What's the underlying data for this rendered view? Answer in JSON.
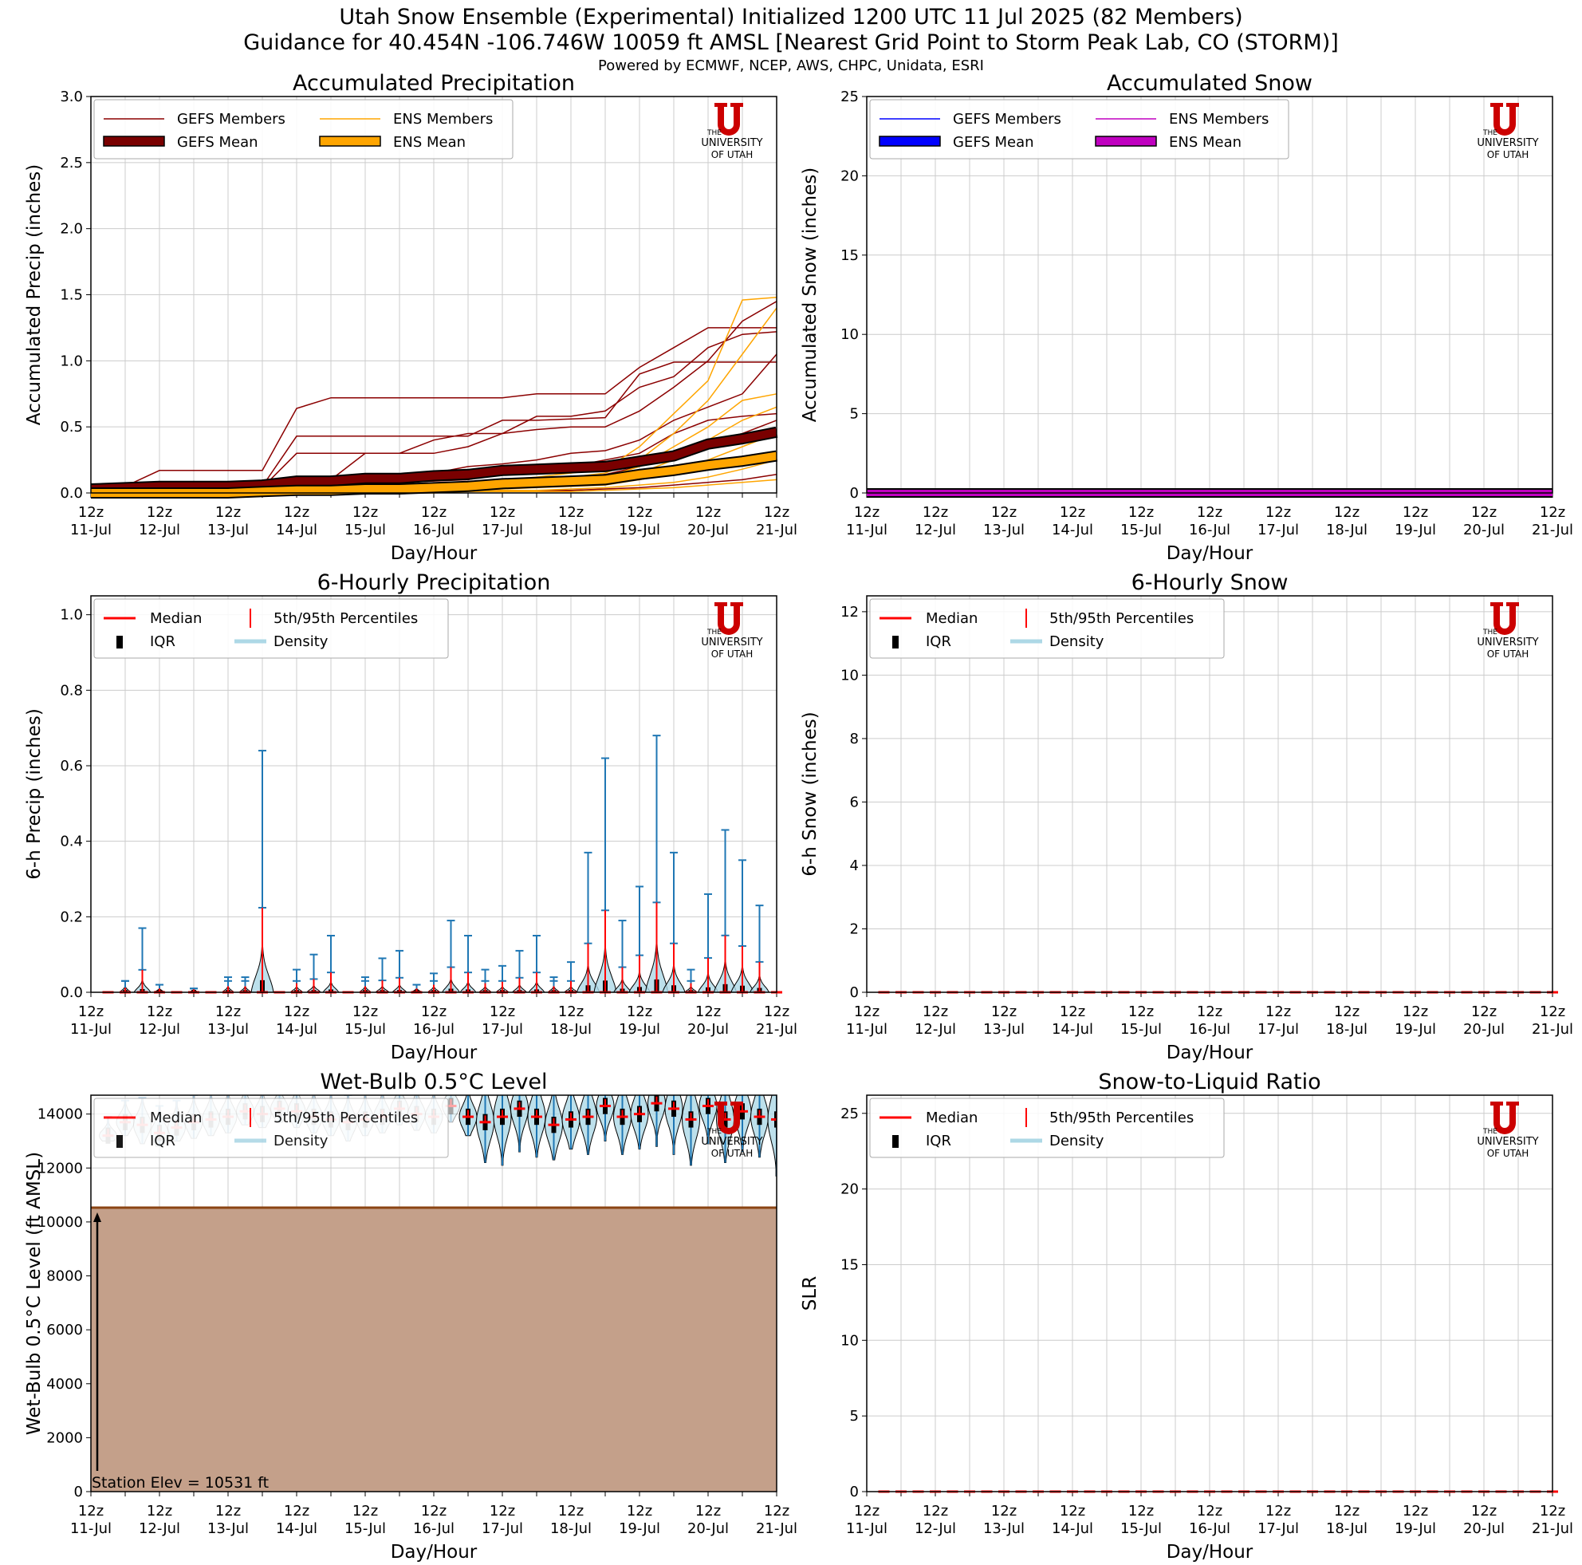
{
  "header": {
    "title_line1": "Utah Snow Ensemble (Experimental) Initialized 1200 UTC 11 Jul 2025 (82 Members)",
    "title_line2": "Guidance for 40.454N -106.746W 10059 ft AMSL [Nearest Grid Point to Storm Peak Lab, CO (STORM)]",
    "powered_by": "Powered by ECMWF, NCEP, AWS, CHPC, Unidata, ESRI"
  },
  "logo": {
    "line1": "THE",
    "line2": "UNIVERSITY",
    "line3": "OF UTAH",
    "color": "#cc0000"
  },
  "colors": {
    "gefs_member": "#8b0000",
    "gefs_mean": "#7a0000",
    "ens_member": "#ffa500",
    "ens_mean": "#ffa500",
    "snow_gefs": "#0000ff",
    "snow_ens": "#c000c0",
    "median": "#ff0000",
    "iqr": "#000000",
    "density": "#add8e6",
    "whisker": "#1f77b4",
    "terrain": "#c4a08a",
    "terrain_edge": "#8b4513",
    "grid": "#cccccc"
  },
  "x_axis": {
    "hour_labels": [
      "12z",
      "12z",
      "12z",
      "12z",
      "12z",
      "12z",
      "12z",
      "12z",
      "12z",
      "12z",
      "12z"
    ],
    "day_labels": [
      "11-Jul",
      "12-Jul",
      "13-Jul",
      "14-Jul",
      "15-Jul",
      "16-Jul",
      "17-Jul",
      "18-Jul",
      "19-Jul",
      "20-Jul",
      "21-Jul"
    ],
    "xlabel": "Day/Hour"
  },
  "chart_data": [
    {
      "id": "accum_precip",
      "type": "line",
      "title": "Accumulated Precipitation",
      "ylabel": "Accumulated Precip (inches)",
      "xlabel": "Day/Hour",
      "ylim": [
        0,
        3.0
      ],
      "yticks": [
        "0.0",
        "0.5",
        "1.0",
        "1.5",
        "2.0",
        "2.5",
        "3.0"
      ],
      "yticks_values": [
        0,
        0.5,
        1.0,
        1.5,
        2.0,
        2.5,
        3.0
      ],
      "x_days": [
        0,
        0.5,
        1,
        1.5,
        2,
        2.5,
        3,
        3.5,
        4,
        4.5,
        5,
        5.5,
        6,
        6.5,
        7,
        7.5,
        8,
        8.5,
        9,
        9.5,
        10
      ],
      "legend": [
        "GEFS Members",
        "ENS Members",
        "GEFS Mean",
        "ENS Mean"
      ],
      "series": [
        {
          "name": "GEFS Mean",
          "values": [
            0.03,
            0.04,
            0.05,
            0.05,
            0.05,
            0.06,
            0.09,
            0.09,
            0.11,
            0.11,
            0.13,
            0.14,
            0.17,
            0.18,
            0.19,
            0.2,
            0.24,
            0.28,
            0.37,
            0.41,
            0.46
          ]
        },
        {
          "name": "ENS Mean",
          "values": [
            0.0,
            0.0,
            0.0,
            0.0,
            0.0,
            0.01,
            0.02,
            0.02,
            0.03,
            0.03,
            0.04,
            0.05,
            0.07,
            0.08,
            0.09,
            0.1,
            0.14,
            0.17,
            0.21,
            0.24,
            0.28
          ]
        },
        {
          "name": "GEFS Member A",
          "values": [
            0.03,
            0.05,
            0.17,
            0.17,
            0.17,
            0.17,
            0.64,
            0.72,
            0.72,
            0.72,
            0.72,
            0.72,
            0.72,
            0.75,
            0.75,
            0.75,
            0.95,
            1.1,
            1.25,
            1.25,
            1.25
          ]
        },
        {
          "name": "GEFS Member B",
          "values": [
            0.03,
            0.03,
            0.03,
            0.03,
            0.03,
            0.05,
            0.43,
            0.43,
            0.43,
            0.43,
            0.43,
            0.43,
            0.55,
            0.55,
            0.56,
            0.57,
            0.9,
            0.99,
            0.99,
            0.99,
            0.99
          ]
        },
        {
          "name": "GEFS Member C",
          "values": [
            0.02,
            0.03,
            0.03,
            0.04,
            0.04,
            0.04,
            0.3,
            0.3,
            0.3,
            0.3,
            0.3,
            0.35,
            0.45,
            0.58,
            0.58,
            0.62,
            0.8,
            0.88,
            1.1,
            1.2,
            1.22
          ]
        },
        {
          "name": "GEFS Member D",
          "values": [
            0.02,
            0.02,
            0.02,
            0.02,
            0.02,
            0.03,
            0.07,
            0.1,
            0.3,
            0.3,
            0.4,
            0.45,
            0.45,
            0.48,
            0.5,
            0.5,
            0.62,
            0.8,
            1.0,
            1.3,
            1.45
          ]
        },
        {
          "name": "GEFS Member E",
          "values": [
            0.02,
            0.02,
            0.02,
            0.02,
            0.02,
            0.02,
            0.05,
            0.05,
            0.1,
            0.12,
            0.15,
            0.2,
            0.22,
            0.25,
            0.3,
            0.32,
            0.4,
            0.55,
            0.65,
            0.75,
            1.05
          ]
        },
        {
          "name": "GEFS Member F",
          "values": [
            0.01,
            0.01,
            0.01,
            0.01,
            0.01,
            0.02,
            0.04,
            0.05,
            0.07,
            0.08,
            0.09,
            0.1,
            0.15,
            0.16,
            0.2,
            0.25,
            0.3,
            0.45,
            0.55,
            0.58,
            0.6
          ]
        },
        {
          "name": "GEFS Member G",
          "values": [
            0.01,
            0.01,
            0.01,
            0.01,
            0.01,
            0.01,
            0.02,
            0.02,
            0.03,
            0.04,
            0.05,
            0.06,
            0.08,
            0.1,
            0.12,
            0.14,
            0.2,
            0.3,
            0.38,
            0.45,
            0.55
          ]
        },
        {
          "name": "GEFS Member H",
          "values": [
            0.0,
            0.0,
            0.0,
            0.0,
            0.0,
            0.0,
            0.01,
            0.01,
            0.01,
            0.02,
            0.03,
            0.03,
            0.05,
            0.05,
            0.06,
            0.08,
            0.1,
            0.15,
            0.2,
            0.25,
            0.3
          ]
        },
        {
          "name": "GEFS Member I",
          "values": [
            0.0,
            0.0,
            0.0,
            0.0,
            0.0,
            0.0,
            0.0,
            0.0,
            0.0,
            0.0,
            0.01,
            0.01,
            0.02,
            0.02,
            0.02,
            0.03,
            0.04,
            0.06,
            0.08,
            0.1,
            0.14
          ]
        },
        {
          "name": "ENS Member A",
          "values": [
            0.0,
            0.0,
            0.0,
            0.0,
            0.0,
            0.01,
            0.02,
            0.03,
            0.03,
            0.04,
            0.05,
            0.06,
            0.1,
            0.12,
            0.15,
            0.18,
            0.35,
            0.6,
            0.85,
            1.46,
            1.48
          ]
        },
        {
          "name": "ENS Member B",
          "values": [
            0.0,
            0.0,
            0.0,
            0.0,
            0.0,
            0.01,
            0.02,
            0.02,
            0.03,
            0.04,
            0.05,
            0.06,
            0.08,
            0.1,
            0.12,
            0.15,
            0.25,
            0.45,
            0.7,
            1.05,
            1.4
          ]
        },
        {
          "name": "ENS Member C",
          "values": [
            0.0,
            0.0,
            0.0,
            0.0,
            0.0,
            0.0,
            0.01,
            0.02,
            0.02,
            0.03,
            0.03,
            0.04,
            0.06,
            0.08,
            0.1,
            0.12,
            0.2,
            0.35,
            0.5,
            0.7,
            0.75
          ]
        },
        {
          "name": "ENS Member D",
          "values": [
            0.0,
            0.0,
            0.0,
            0.0,
            0.0,
            0.0,
            0.01,
            0.01,
            0.02,
            0.02,
            0.03,
            0.03,
            0.05,
            0.06,
            0.08,
            0.1,
            0.15,
            0.25,
            0.4,
            0.55,
            0.65
          ]
        },
        {
          "name": "ENS Member E",
          "values": [
            0.0,
            0.0,
            0.0,
            0.0,
            0.0,
            0.0,
            0.0,
            0.01,
            0.01,
            0.01,
            0.02,
            0.02,
            0.03,
            0.04,
            0.05,
            0.06,
            0.1,
            0.15,
            0.25,
            0.35,
            0.45
          ]
        },
        {
          "name": "ENS Member F",
          "values": [
            0.0,
            0.0,
            0.0,
            0.0,
            0.0,
            0.0,
            0.0,
            0.0,
            0.01,
            0.01,
            0.01,
            0.01,
            0.02,
            0.02,
            0.03,
            0.04,
            0.06,
            0.08,
            0.12,
            0.18,
            0.25
          ]
        },
        {
          "name": "ENS Member G",
          "values": [
            0.0,
            0.0,
            0.0,
            0.0,
            0.0,
            0.0,
            0.0,
            0.0,
            0.0,
            0.0,
            0.0,
            0.01,
            0.01,
            0.01,
            0.01,
            0.02,
            0.03,
            0.04,
            0.06,
            0.08,
            0.1
          ]
        }
      ]
    },
    {
      "id": "accum_snow",
      "type": "line",
      "title": "Accumulated Snow",
      "ylabel": "Accumulated Snow (inches)",
      "xlabel": "Day/Hour",
      "ylim": [
        0,
        25
      ],
      "yticks": [
        "0",
        "5",
        "10",
        "15",
        "20",
        "25"
      ],
      "yticks_values": [
        0,
        5,
        10,
        15,
        20,
        25
      ],
      "legend": [
        "GEFS Members",
        "ENS Members",
        "GEFS Mean",
        "ENS Mean"
      ],
      "series": [
        {
          "name": "GEFS Mean",
          "values": [
            0,
            0,
            0,
            0,
            0,
            0,
            0,
            0,
            0,
            0,
            0,
            0,
            0,
            0,
            0,
            0,
            0,
            0,
            0,
            0,
            0
          ]
        },
        {
          "name": "ENS Mean",
          "values": [
            0,
            0,
            0,
            0,
            0,
            0,
            0,
            0,
            0,
            0,
            0,
            0,
            0,
            0,
            0,
            0,
            0,
            0,
            0,
            0,
            0
          ]
        }
      ]
    },
    {
      "id": "six_hourly_precip",
      "type": "violin",
      "title": "6-Hourly Precipitation",
      "ylabel": "6-h Precip (inches)",
      "xlabel": "Day/Hour",
      "ylim": [
        0,
        1.05
      ],
      "yticks": [
        "0.0",
        "0.2",
        "0.4",
        "0.6",
        "0.8",
        "1.0"
      ],
      "yticks_values": [
        0,
        0.2,
        0.4,
        0.6,
        0.8,
        1.0
      ],
      "legend": [
        "Median",
        "5th/95th Percentiles",
        "IQR",
        "Density"
      ],
      "x_days": [
        0.25,
        0.5,
        0.75,
        1.0,
        1.25,
        1.5,
        1.75,
        2.0,
        2.25,
        2.5,
        2.75,
        3.0,
        3.25,
        3.5,
        3.75,
        4.0,
        4.25,
        4.5,
        4.75,
        5.0,
        5.25,
        5.5,
        5.75,
        6.0,
        6.25,
        6.5,
        6.75,
        7.0,
        7.25,
        7.5,
        7.75,
        8.0,
        8.25,
        8.5,
        8.75,
        9.0,
        9.25,
        9.5,
        9.75,
        10.0
      ],
      "p95": [
        0.0,
        0.03,
        0.17,
        0.02,
        0.0,
        0.01,
        0.0,
        0.04,
        0.04,
        0.64,
        0.0,
        0.06,
        0.1,
        0.15,
        0.0,
        0.04,
        0.09,
        0.11,
        0.02,
        0.05,
        0.19,
        0.15,
        0.06,
        0.07,
        0.11,
        0.15,
        0.04,
        0.08,
        0.37,
        0.62,
        0.19,
        0.28,
        0.68,
        0.37,
        0.06,
        0.26,
        0.43,
        0.35,
        0.23,
        0.0
      ],
      "median": [
        0.0,
        0.0,
        0.01,
        0.0,
        0.0,
        0.0,
        0.0,
        0.0,
        0.0,
        0.0,
        0.0,
        0.0,
        0.01,
        0.0,
        0.0,
        0.0,
        0.01,
        0.01,
        0.0,
        0.0,
        0.02,
        0.01,
        0.0,
        0.01,
        0.02,
        0.01,
        0.0,
        0.0,
        0.01,
        0.03,
        0.01,
        0.02,
        0.04,
        0.02,
        0.0,
        0.01,
        0.03,
        0.02,
        0.01,
        0.0
      ]
    },
    {
      "id": "six_hourly_snow",
      "type": "violin",
      "title": "6-Hourly Snow",
      "ylabel": "6-h Snow (inches)",
      "xlabel": "Day/Hour",
      "ylim": [
        0,
        12.5
      ],
      "yticks": [
        "0",
        "2",
        "4",
        "6",
        "8",
        "10",
        "12"
      ],
      "yticks_values": [
        0,
        2,
        4,
        6,
        8,
        10,
        12
      ],
      "legend": [
        "Median",
        "5th/95th Percentiles",
        "IQR",
        "Density"
      ],
      "median": 0
    },
    {
      "id": "wet_bulb",
      "type": "violin",
      "title": "Wet-Bulb 0.5°C Level",
      "ylabel": "Wet-Bulb 0.5°C Level (ft AMSL)",
      "xlabel": "Day/Hour",
      "ylim": [
        0,
        14700
      ],
      "yticks": [
        "0",
        "2000",
        "4000",
        "6000",
        "8000",
        "10000",
        "12000",
        "14000"
      ],
      "yticks_values": [
        0,
        2000,
        4000,
        6000,
        8000,
        10000,
        12000,
        14000
      ],
      "legend": [
        "Median",
        "5th/95th Percentiles",
        "IQR",
        "Density"
      ],
      "station_elev_ft": 10531,
      "station_label": "Station Elev = 10531 ft",
      "median": [
        13200,
        13700,
        13600,
        13300,
        13500,
        13700,
        13800,
        13900,
        14100,
        14000,
        14200,
        14100,
        13900,
        13800,
        13700,
        13800,
        13900,
        14200,
        14000,
        13900,
        14300,
        13900,
        13700,
        13900,
        14200,
        13900,
        13600,
        13800,
        13900,
        14300,
        13900,
        14000,
        14400,
        14200,
        13800,
        14300,
        13800,
        14100,
        13900,
        13800
      ],
      "p05": [
        13000,
        13200,
        12900,
        12800,
        13000,
        13100,
        13200,
        13300,
        13600,
        13500,
        13700,
        13500,
        13300,
        13200,
        13000,
        13200,
        13300,
        13600,
        13400,
        13300,
        13700,
        13200,
        12200,
        12100,
        12600,
        12400,
        12300,
        12700,
        12500,
        13000,
        12500,
        12700,
        12800,
        12500,
        12100,
        12900,
        12200,
        12600,
        12400,
        11700
      ],
      "p95": [
        13400,
        14000,
        14100,
        13800,
        14000,
        14200,
        14300,
        14400,
        14600,
        14500,
        14700,
        14600,
        14400,
        14300,
        14200,
        14300,
        14400,
        14700,
        14500,
        14400,
        14700,
        14500,
        14500,
        14600,
        14700,
        14600,
        14400,
        14700,
        14700,
        14700,
        14700,
        14700,
        14700,
        14700,
        14600,
        14700,
        14700,
        14700,
        14700,
        14700
      ],
      "faded_until_index": 21
    },
    {
      "id": "slr",
      "type": "violin",
      "title": "Snow-to-Liquid Ratio",
      "ylabel": "SLR",
      "xlabel": "Day/Hour",
      "ylim": [
        0,
        26.2
      ],
      "yticks": [
        "0",
        "5",
        "10",
        "15",
        "20",
        "25"
      ],
      "yticks_values": [
        0,
        5,
        10,
        15,
        20,
        25
      ],
      "legend": [
        "Median",
        "5th/95th Percentiles",
        "IQR",
        "Density"
      ],
      "median": 0
    }
  ]
}
